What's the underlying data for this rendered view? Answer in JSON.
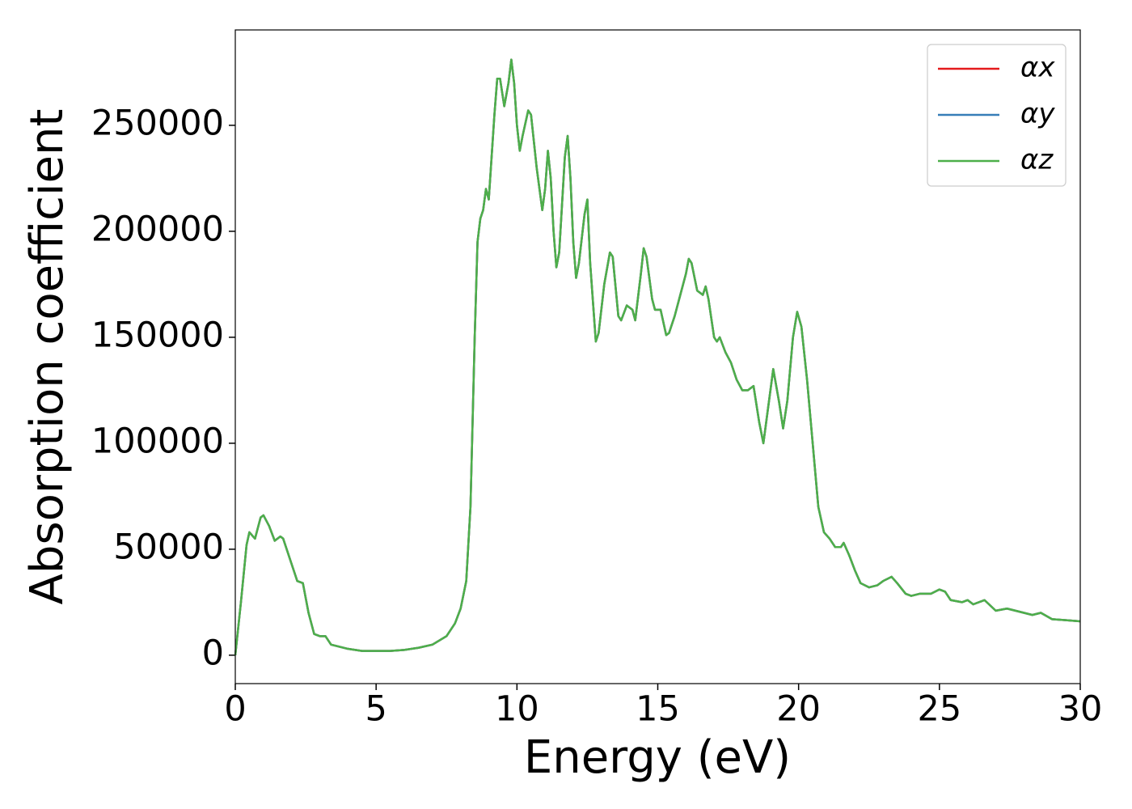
{
  "chart_data": {
    "type": "line",
    "xlabel": "Energy (eV)",
    "ylabel": "Absorption coefficient",
    "x": [
      0,
      0.2,
      0.4,
      0.5,
      0.7,
      0.9,
      1.0,
      1.2,
      1.4,
      1.6,
      1.7,
      2.0,
      2.2,
      2.4,
      2.6,
      2.8,
      3.0,
      3.2,
      3.4,
      3.7,
      4.0,
      4.5,
      5,
      5.5,
      6,
      6.5,
      7,
      7.5,
      7.8,
      8.0,
      8.2,
      8.35,
      8.5,
      8.6,
      8.7,
      8.8,
      8.9,
      9.0,
      9.1,
      9.2,
      9.3,
      9.4,
      9.55,
      9.7,
      9.8,
      9.9,
      10.0,
      10.1,
      10.2,
      10.4,
      10.5,
      10.7,
      10.9,
      11.0,
      11.1,
      11.2,
      11.3,
      11.4,
      11.5,
      11.7,
      11.8,
      11.9,
      12.0,
      12.1,
      12.2,
      12.4,
      12.5,
      12.6,
      12.8,
      12.9,
      13.1,
      13.3,
      13.4,
      13.6,
      13.7,
      13.9,
      14.1,
      14.2,
      14.4,
      14.5,
      14.6,
      14.8,
      14.9,
      15.1,
      15.3,
      15.4,
      15.6,
      15.8,
      16.0,
      16.1,
      16.2,
      16.4,
      16.6,
      16.7,
      16.8,
      17.0,
      17.1,
      17.2,
      17.4,
      17.6,
      17.8,
      18.0,
      18.2,
      18.4,
      18.6,
      18.75,
      18.9,
      19.1,
      19.3,
      19.45,
      19.6,
      19.8,
      19.95,
      20.1,
      20.3,
      20.5,
      20.7,
      20.9,
      21.1,
      21.3,
      21.5,
      21.6,
      21.8,
      22.0,
      22.2,
      22.5,
      22.8,
      23.0,
      23.3,
      23.5,
      23.8,
      24.0,
      24.3,
      24.7,
      25.0,
      25.2,
      25.4,
      25.8,
      26.0,
      26.2,
      26.6,
      27.0,
      27.4,
      28.0,
      28.3,
      28.6,
      29.0,
      29.5,
      30
    ],
    "series": [
      {
        "name": "αx",
        "color": "#e41a1c",
        "values": [
          0,
          25000,
          52000,
          58000,
          55000,
          65000,
          66000,
          61000,
          54000,
          56000,
          55000,
          43000,
          35000,
          34000,
          20000,
          10000,
          9000,
          9000,
          5000,
          4000,
          3000,
          2000,
          2000,
          2000,
          2500,
          3500,
          5000,
          9000,
          15000,
          22000,
          35000,
          70000,
          150000,
          195000,
          206000,
          210000,
          220000,
          215000,
          235000,
          255000,
          272000,
          272000,
          259000,
          270000,
          281000,
          270000,
          250000,
          238000,
          245000,
          257000,
          255000,
          230000,
          210000,
          220000,
          238000,
          225000,
          200000,
          183000,
          190000,
          235000,
          245000,
          225000,
          195000,
          178000,
          185000,
          208000,
          215000,
          185000,
          148000,
          152000,
          175000,
          190000,
          188000,
          160000,
          158000,
          165000,
          163000,
          158000,
          180000,
          192000,
          188000,
          168000,
          163000,
          163000,
          151000,
          152000,
          160000,
          170000,
          180000,
          187000,
          185000,
          172000,
          170000,
          174000,
          168000,
          150000,
          148000,
          150000,
          143000,
          138000,
          130000,
          125000,
          125000,
          127000,
          110000,
          100000,
          115000,
          135000,
          120000,
          107000,
          120000,
          150000,
          162000,
          155000,
          130000,
          100000,
          70000,
          58000,
          55000,
          51000,
          51000,
          53000,
          47000,
          40000,
          34000,
          32000,
          33000,
          35000,
          37000,
          34000,
          29000,
          28000,
          29000,
          29000,
          31000,
          30000,
          26000,
          25000,
          26000,
          24000,
          26000,
          21000,
          22000,
          20000,
          19000,
          20000,
          17000,
          16500,
          16000
        ]
      },
      {
        "name": "αy",
        "color": "#377eb8",
        "values": [
          0,
          25000,
          52000,
          58000,
          55000,
          65000,
          66000,
          61000,
          54000,
          56000,
          55000,
          43000,
          35000,
          34000,
          20000,
          10000,
          9000,
          9000,
          5000,
          4000,
          3000,
          2000,
          2000,
          2000,
          2500,
          3500,
          5000,
          9000,
          15000,
          22000,
          35000,
          70000,
          150000,
          195000,
          206000,
          210000,
          220000,
          215000,
          235000,
          255000,
          272000,
          272000,
          259000,
          270000,
          281000,
          270000,
          250000,
          238000,
          245000,
          257000,
          255000,
          230000,
          210000,
          220000,
          238000,
          225000,
          200000,
          183000,
          190000,
          235000,
          245000,
          225000,
          195000,
          178000,
          185000,
          208000,
          215000,
          185000,
          148000,
          152000,
          175000,
          190000,
          188000,
          160000,
          158000,
          165000,
          163000,
          158000,
          180000,
          192000,
          188000,
          168000,
          163000,
          163000,
          151000,
          152000,
          160000,
          170000,
          180000,
          187000,
          185000,
          172000,
          170000,
          174000,
          168000,
          150000,
          148000,
          150000,
          143000,
          138000,
          130000,
          125000,
          125000,
          127000,
          110000,
          100000,
          115000,
          135000,
          120000,
          107000,
          120000,
          150000,
          162000,
          155000,
          130000,
          100000,
          70000,
          58000,
          55000,
          51000,
          51000,
          53000,
          47000,
          40000,
          34000,
          32000,
          33000,
          35000,
          37000,
          34000,
          29000,
          28000,
          29000,
          29000,
          31000,
          30000,
          26000,
          25000,
          26000,
          24000,
          26000,
          21000,
          22000,
          20000,
          19000,
          20000,
          17000,
          16500,
          16000
        ]
      },
      {
        "name": "αz",
        "color": "#4daf4a",
        "values": [
          0,
          25000,
          52000,
          58000,
          55000,
          65000,
          66000,
          61000,
          54000,
          56000,
          55000,
          43000,
          35000,
          34000,
          20000,
          10000,
          9000,
          9000,
          5000,
          4000,
          3000,
          2000,
          2000,
          2000,
          2500,
          3500,
          5000,
          9000,
          15000,
          22000,
          35000,
          70000,
          150000,
          195000,
          206000,
          210000,
          220000,
          215000,
          235000,
          255000,
          272000,
          272000,
          259000,
          270000,
          281000,
          270000,
          250000,
          238000,
          245000,
          257000,
          255000,
          230000,
          210000,
          220000,
          238000,
          225000,
          200000,
          183000,
          190000,
          235000,
          245000,
          225000,
          195000,
          178000,
          185000,
          208000,
          215000,
          185000,
          148000,
          152000,
          175000,
          190000,
          188000,
          160000,
          158000,
          165000,
          163000,
          158000,
          180000,
          192000,
          188000,
          168000,
          163000,
          163000,
          151000,
          152000,
          160000,
          170000,
          180000,
          187000,
          185000,
          172000,
          170000,
          174000,
          168000,
          150000,
          148000,
          150000,
          143000,
          138000,
          130000,
          125000,
          125000,
          127000,
          110000,
          100000,
          115000,
          135000,
          120000,
          107000,
          120000,
          150000,
          162000,
          155000,
          130000,
          100000,
          70000,
          58000,
          55000,
          51000,
          51000,
          53000,
          47000,
          40000,
          34000,
          32000,
          33000,
          35000,
          37000,
          34000,
          29000,
          28000,
          29000,
          29000,
          31000,
          30000,
          26000,
          25000,
          26000,
          24000,
          26000,
          21000,
          22000,
          20000,
          19000,
          20000,
          17000,
          16500,
          16000
        ]
      }
    ],
    "xlim": [
      0,
      30
    ],
    "xticks": [
      0,
      5,
      10,
      15,
      20,
      25,
      30
    ],
    "ylim": [
      -13400,
      295000
    ],
    "yticks": [
      0,
      50000,
      100000,
      150000,
      200000,
      250000
    ],
    "legend": "upper right"
  }
}
